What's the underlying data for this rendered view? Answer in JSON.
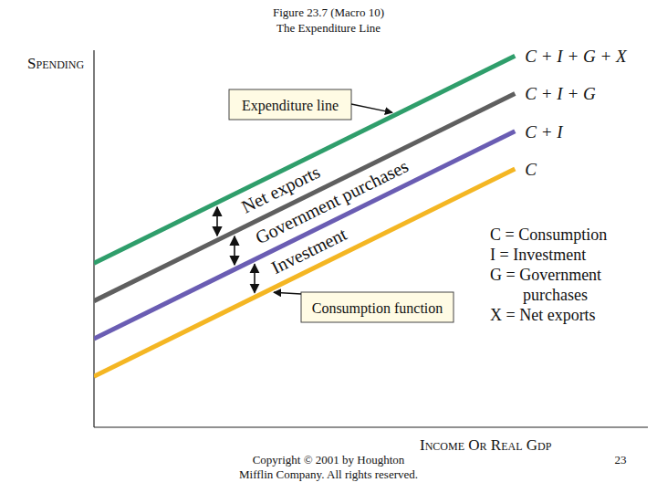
{
  "chart_data": {
    "type": "line",
    "title": "Figure 23.7 (Macro 10)",
    "subtitle": "The Expenditure Line",
    "x_label": "INCOME OR REAL GDP",
    "y_label": "SPENDING",
    "x": [
      0,
      76
    ],
    "xlim": [
      0,
      100
    ],
    "ylim": [
      0,
      100
    ],
    "tick_labels": false,
    "grid": false,
    "stacked": true,
    "series": [
      {
        "name": "Consumption",
        "label": "C",
        "color": "#f4b623",
        "values": [
          13.5,
          68.5
        ]
      },
      {
        "name": "Investment",
        "label": "C + I",
        "color": "#6a5db3",
        "values": [
          10,
          10
        ]
      },
      {
        "name": "Government purchases",
        "label": "C + I + G",
        "color": "#5f5f5f",
        "values": [
          10,
          10
        ]
      },
      {
        "name": "Net exports",
        "label": "C + I + G + X",
        "color": "#2f9e6b",
        "values": [
          10,
          10
        ]
      }
    ],
    "key": [
      "C = Consumption",
      "I = Investment",
      "G = Government purchases",
      "X = Net exports"
    ],
    "annotations": [
      {
        "text": "Expenditure line",
        "series": 3
      },
      {
        "text": "Consumption function",
        "series": 0
      }
    ],
    "footer": [
      "Copyright © 2001 by Houghton",
      "Mifflin Company. All rights reserved."
    ],
    "page_number": "23"
  }
}
